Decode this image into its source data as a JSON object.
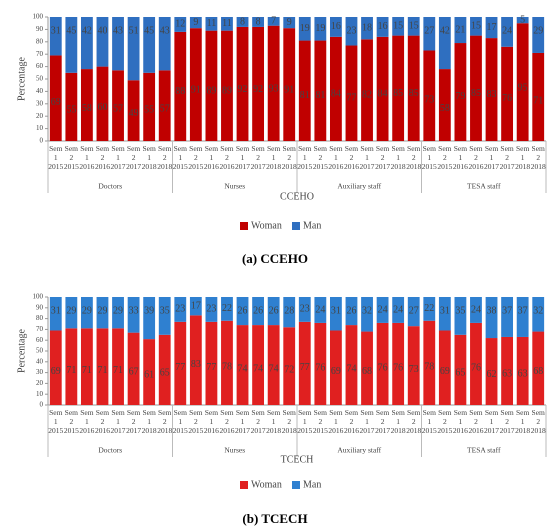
{
  "chart_data": [
    {
      "type": "bar",
      "stacked": true,
      "caption": "(a) CCEHO",
      "xlabel": "CCEHO",
      "ylabel": "Percentage",
      "categories": [
        "Sem 1 2015",
        "Sem 2 2015",
        "Sem 1 2016",
        "Sem 2 2016",
        "Sem 1 2017",
        "Sem 2 2017",
        "Sem 1 2018",
        "Sem 2 2018",
        "Sem 1 2015",
        "Sem 2 2015",
        "Sem 1 2016",
        "Sem 2 2016",
        "Sem 1 2017",
        "Sem 2 2017",
        "Sem 1 2018",
        "Sem 2 2018",
        "Sem 1 2015",
        "Sem 2 2015",
        "Sem 1 2016",
        "Sem 2 2016",
        "Sem 1 2017",
        "Sem 2 2017",
        "Sem 1 2018",
        "Sem 2 2018",
        "Sem 1 2015",
        "Sem 2 2015",
        "Sem 1 2016",
        "Sem 2 2016",
        "Sem 1 2017",
        "Sem 2 2017",
        "Sem 1 2018",
        "Sem 2 2018"
      ],
      "groups": [
        "Doctors",
        "Nurses",
        "Auxiliary staff",
        "TESA staff"
      ],
      "series": [
        {
          "name": "Woman",
          "color": "#c00000",
          "values": [
            69,
            55,
            58,
            60,
            57,
            49,
            55,
            57,
            88,
            91,
            89,
            89,
            92,
            92,
            93,
            91,
            81,
            81,
            84,
            77,
            82,
            84,
            85,
            85,
            73,
            58,
            79,
            85,
            83,
            76,
            95,
            71
          ]
        },
        {
          "name": "Man",
          "color": "#2f6fc0",
          "values": [
            31,
            45,
            42,
            40,
            43,
            51,
            45,
            43,
            12,
            9,
            11,
            11,
            8,
            8,
            7,
            9,
            19,
            19,
            16,
            23,
            18,
            16,
            15,
            15,
            27,
            42,
            21,
            15,
            17,
            24,
            5,
            29
          ]
        }
      ],
      "ylim": [
        0,
        100
      ],
      "yticks": [
        0,
        10,
        20,
        30,
        40,
        50,
        60,
        70,
        80,
        90,
        100
      ],
      "legend": "bottom"
    },
    {
      "type": "bar",
      "stacked": true,
      "caption": "(b) TCECH",
      "xlabel": "TCECH",
      "ylabel": "Percentage",
      "categories": [
        "Sem 1 2015",
        "Sem 2 2015",
        "Sem 1 2016",
        "Sem 2 2016",
        "Sem 1 2017",
        "Sem 2 2017",
        "Sem 1 2018",
        "Sem 2 2018",
        "Sem 1 2015",
        "Sem 2 2015",
        "Sem 1 2016",
        "Sem 2 2016",
        "Sem 1 2017",
        "Sem 2 2017",
        "Sem 1 2018",
        "Sem 2 2018",
        "Sem 1 2015",
        "Sem 2 2015",
        "Sem 1 2016",
        "Sem 2 2016",
        "Sem 1 2017",
        "Sem 2 2017",
        "Sem 1 2018",
        "Sem 2 2018",
        "Sem 1 2015",
        "Sem 2 2015",
        "Sem 1 2016",
        "Sem 2 2016",
        "Sem 1 2017",
        "Sem 2 2017",
        "Sem 1 2018",
        "Sem 2 2018"
      ],
      "groups": [
        "Doctors",
        "Nurses",
        "Auxiliary staff",
        "TESA staff"
      ],
      "series": [
        {
          "name": "Woman",
          "color": "#e02020",
          "values": [
            69,
            71,
            71,
            71,
            71,
            67,
            61,
            65,
            77,
            83,
            77,
            78,
            74,
            74,
            74,
            72,
            77,
            76,
            69,
            74,
            68,
            76,
            76,
            73,
            78,
            69,
            65,
            76,
            62,
            63,
            63,
            68
          ]
        },
        {
          "name": "Man",
          "color": "#2f80d0",
          "values": [
            31,
            29,
            29,
            29,
            29,
            33,
            39,
            35,
            23,
            17,
            23,
            22,
            26,
            26,
            26,
            28,
            23,
            24,
            31,
            26,
            32,
            24,
            24,
            27,
            22,
            31,
            35,
            24,
            38,
            37,
            37,
            32
          ]
        }
      ],
      "ylim": [
        0,
        100
      ],
      "yticks": [
        0,
        10,
        20,
        30,
        40,
        50,
        60,
        70,
        80,
        90,
        100
      ],
      "legend": "bottom"
    }
  ]
}
